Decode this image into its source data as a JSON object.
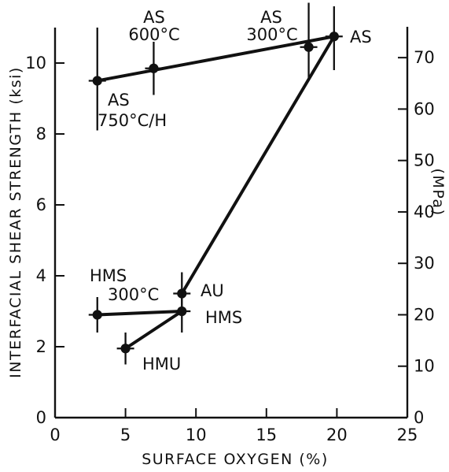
{
  "chart_data": {
    "type": "scatter",
    "title": "",
    "xlabel": "SURFACE OXYGEN (%)",
    "ylabel": "INTERFACIAL SHEAR STRENGTH (ksi)",
    "ylabel_right": "(MPa)",
    "xlim": [
      0,
      25
    ],
    "ylim": [
      0,
      11
    ],
    "ylim_right": [
      0,
      75.8
    ],
    "xticks": [
      0,
      5,
      10,
      15,
      20,
      25
    ],
    "yticks": [
      0,
      2,
      4,
      6,
      8,
      10
    ],
    "yticks_right": [
      0,
      10,
      20,
      30,
      40,
      50,
      60,
      70
    ],
    "grid": false,
    "legend": "none",
    "points": [
      {
        "x": 3,
        "y": 9.5,
        "y_err": [
          8.1,
          11
        ],
        "label": "AS 750°C/H"
      },
      {
        "x": 7,
        "y": 9.85,
        "y_err": [
          9.1,
          10.6
        ],
        "label": "AS 600°C"
      },
      {
        "x": 18,
        "y": 10.45,
        "y_err": [
          9.5,
          11.7
        ],
        "label": "AS 300°C"
      },
      {
        "x": 19.8,
        "y": 10.75,
        "y_err": [
          9.8,
          11.6
        ],
        "label": "AS"
      },
      {
        "x": 9,
        "y": 3.5,
        "y_err": [
          2.9,
          4.1
        ],
        "label": "AU"
      },
      {
        "x": 9,
        "y": 3.0,
        "y_err": [
          2.4,
          3.6
        ],
        "label": "HMS"
      },
      {
        "x": 3,
        "y": 2.9,
        "y_err": [
          2.4,
          3.4
        ],
        "label": "HMS 300°C"
      },
      {
        "x": 5,
        "y": 1.95,
        "y_err": [
          1.5,
          2.4
        ],
        "label": "HMU"
      }
    ],
    "lines": [
      {
        "points": [
          [
            3,
            9.5
          ],
          [
            19.8,
            10.75
          ]
        ]
      },
      {
        "points": [
          [
            9,
            3.5
          ],
          [
            19.8,
            10.75
          ]
        ]
      },
      {
        "points": [
          [
            3,
            2.9
          ],
          [
            9,
            3.0
          ]
        ]
      },
      {
        "points": [
          [
            5,
            1.95
          ],
          [
            9,
            3.0
          ]
        ]
      }
    ],
    "annotations": [
      {
        "lines": [
          "AS",
          "600°C"
        ]
      },
      {
        "lines": [
          "AS",
          "300°C"
        ]
      },
      {
        "lines": [
          "AS"
        ]
      },
      {
        "lines": [
          "AS",
          "750°C/H"
        ]
      },
      {
        "lines": [
          "HMS",
          "300°C"
        ]
      },
      {
        "lines": [
          "AU"
        ]
      },
      {
        "lines": [
          "HMS"
        ]
      },
      {
        "lines": [
          "HMU"
        ]
      }
    ]
  }
}
